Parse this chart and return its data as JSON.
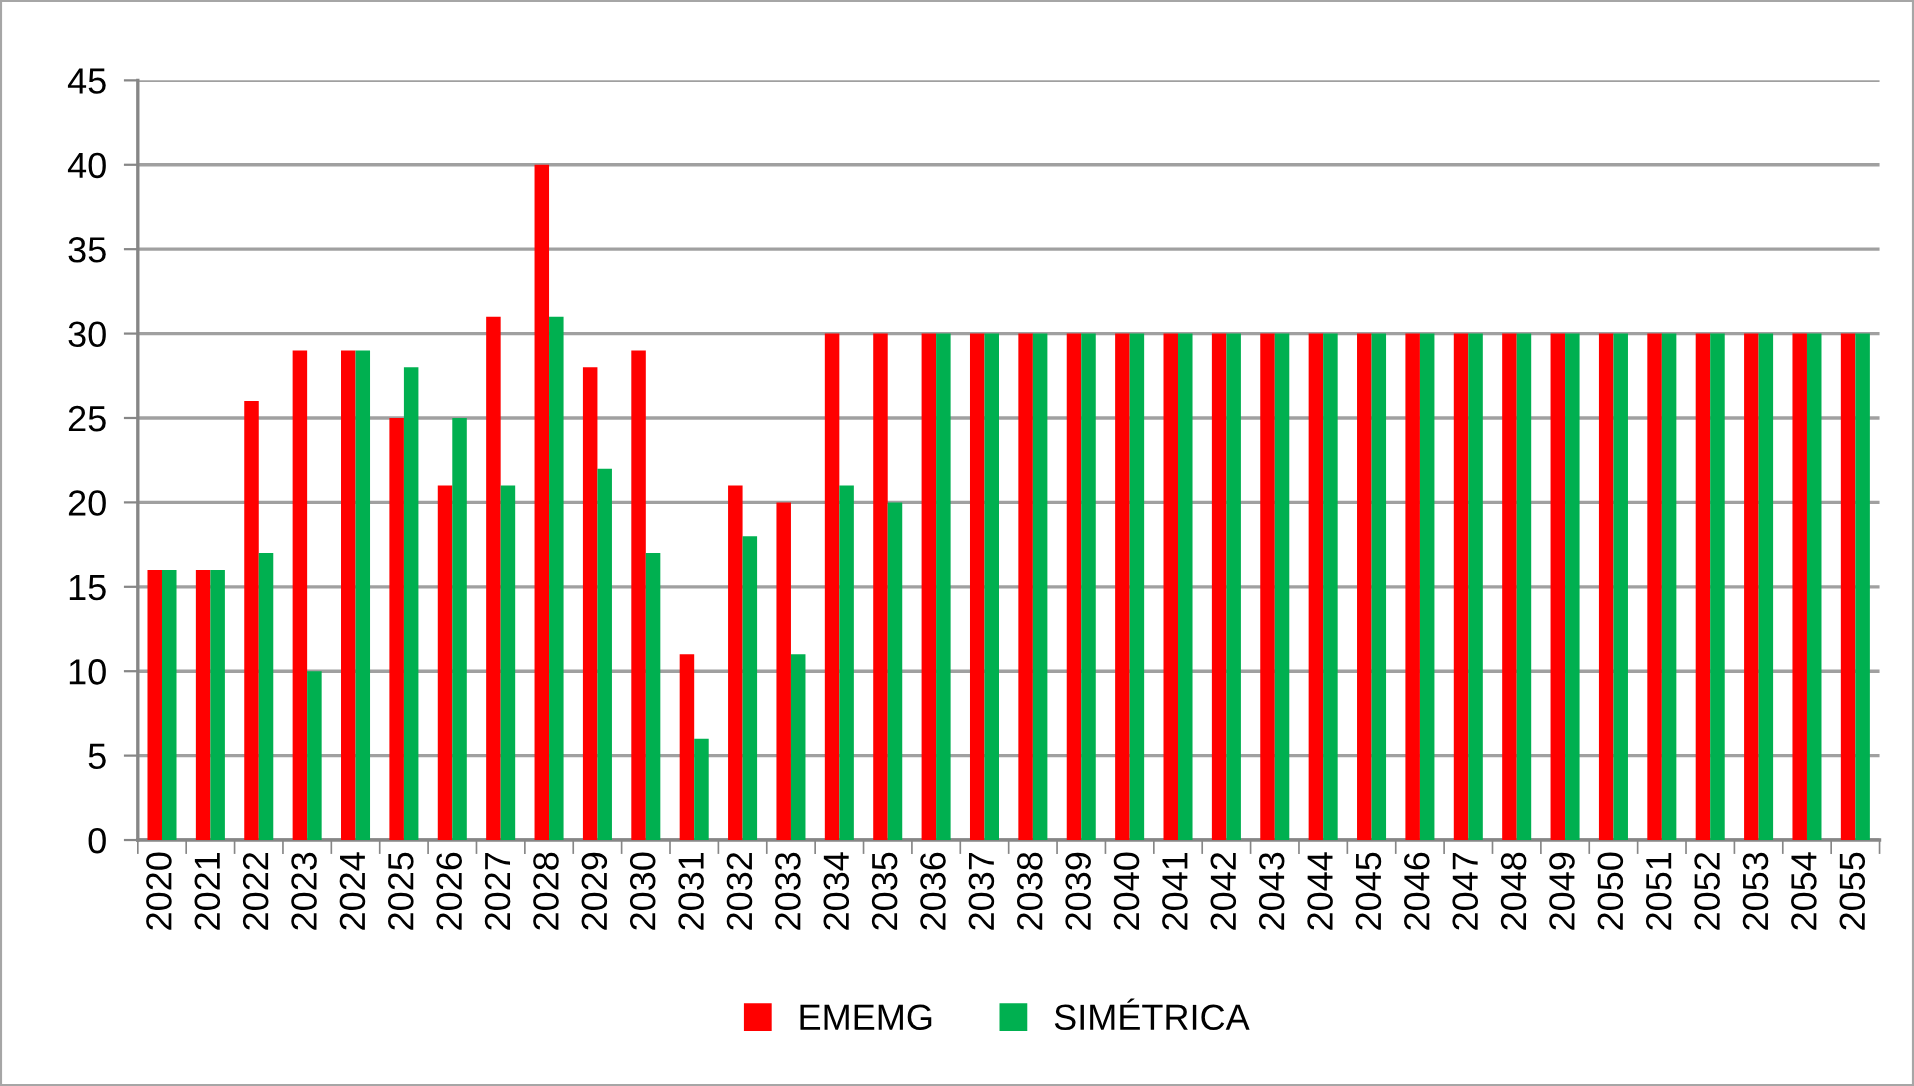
{
  "chart_data": {
    "type": "bar",
    "categories": [
      "2020",
      "2021",
      "2022",
      "2023",
      "2024",
      "2025",
      "2026",
      "2027",
      "2028",
      "2029",
      "2030",
      "2031",
      "2032",
      "2033",
      "2034",
      "2035",
      "2036",
      "2037",
      "2038",
      "2039",
      "2040",
      "2041",
      "2042",
      "2043",
      "2044",
      "2045",
      "2046",
      "2047",
      "2048",
      "2049",
      "2050",
      "2051",
      "2052",
      "2053",
      "2054",
      "2055"
    ],
    "series": [
      {
        "name": "EMEMG",
        "color": "#ff0000",
        "values": [
          16,
          16,
          26,
          29,
          29,
          25,
          21,
          31,
          40,
          28,
          29,
          11,
          21,
          20,
          30,
          30,
          30,
          30,
          30,
          30,
          30,
          30,
          30,
          30,
          30,
          30,
          30,
          30,
          30,
          30,
          30,
          30,
          30,
          30,
          30,
          30
        ]
      },
      {
        "name": "SIMÉTRICA",
        "color": "#00b050",
        "values": [
          16,
          16,
          17,
          10,
          29,
          28,
          25,
          21,
          31,
          22,
          17,
          6,
          18,
          11,
          21,
          20,
          30,
          30,
          30,
          30,
          30,
          30,
          30,
          30,
          30,
          30,
          30,
          30,
          30,
          30,
          30,
          30,
          30,
          30,
          30,
          30
        ]
      }
    ],
    "ylim": [
      0,
      45
    ],
    "yticks": [
      0,
      5,
      10,
      15,
      20,
      25,
      30,
      35,
      40,
      45
    ],
    "grid": "y",
    "legend": "bottom"
  }
}
